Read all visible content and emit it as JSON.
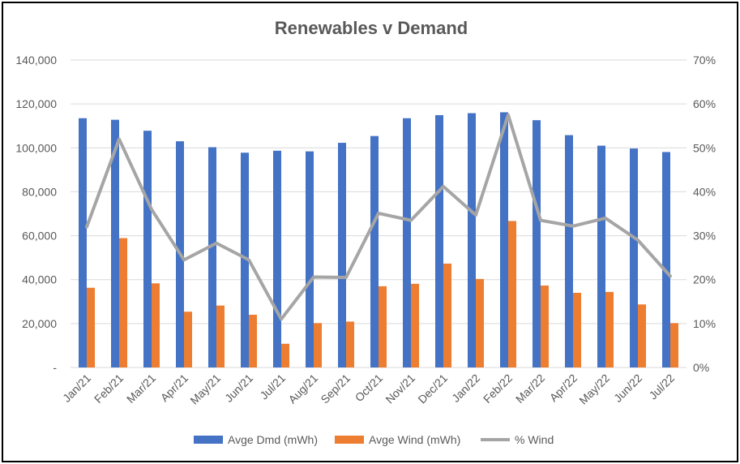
{
  "chart_data": {
    "type": "bar",
    "title": "Renewables v Demand",
    "categories": [
      "Jan/21",
      "Feb/21",
      "Mar/21",
      "Apr/21",
      "May/21",
      "Jun/21",
      "Jul/21",
      "Aug/21",
      "Sep/21",
      "Oct/21",
      "Nov/21",
      "Dec/21",
      "Jan/22",
      "Feb/22",
      "Mar/22",
      "Apr/22",
      "May/22",
      "Jun/22",
      "Jul/22"
    ],
    "series": [
      {
        "name": "Avge Dmd (mWh)",
        "type": "bar",
        "axis": "left",
        "color": "#4472C4",
        "values": [
          113500,
          112800,
          107800,
          103000,
          100300,
          97800,
          98700,
          98400,
          102300,
          105400,
          113500,
          114900,
          115800,
          116200,
          112600,
          105800,
          101000,
          99700,
          98100
        ]
      },
      {
        "name": "Avge Wind (mWh)",
        "type": "bar",
        "axis": "left",
        "color": "#ED7D31",
        "values": [
          36300,
          58900,
          38300,
          25400,
          28200,
          24000,
          10800,
          20200,
          20900,
          37000,
          38100,
          47300,
          40300,
          66700,
          37300,
          34000,
          34400,
          28700,
          20200
        ]
      },
      {
        "name": "% Wind",
        "type": "line",
        "axis": "right",
        "color": "#A5A5A5",
        "values": [
          32,
          52,
          36,
          24.5,
          28.3,
          24.5,
          11,
          20.6,
          20.5,
          35.1,
          33.5,
          41.2,
          34.7,
          57.5,
          33.5,
          32.2,
          34,
          29,
          20.8
        ]
      }
    ],
    "y_left": {
      "min": 0,
      "max": 140000,
      "step": 20000,
      "tick_labels": [
        "-",
        "20,000",
        "40,000",
        "60,000",
        "80,000",
        "100,000",
        "120,000",
        "140,000"
      ]
    },
    "y_right": {
      "min": 0,
      "max": 70,
      "step": 10,
      "tick_labels": [
        "0%",
        "10%",
        "20%",
        "30%",
        "40%",
        "50%",
        "60%",
        "70%"
      ]
    },
    "grid": true,
    "legend_position": "bottom"
  }
}
